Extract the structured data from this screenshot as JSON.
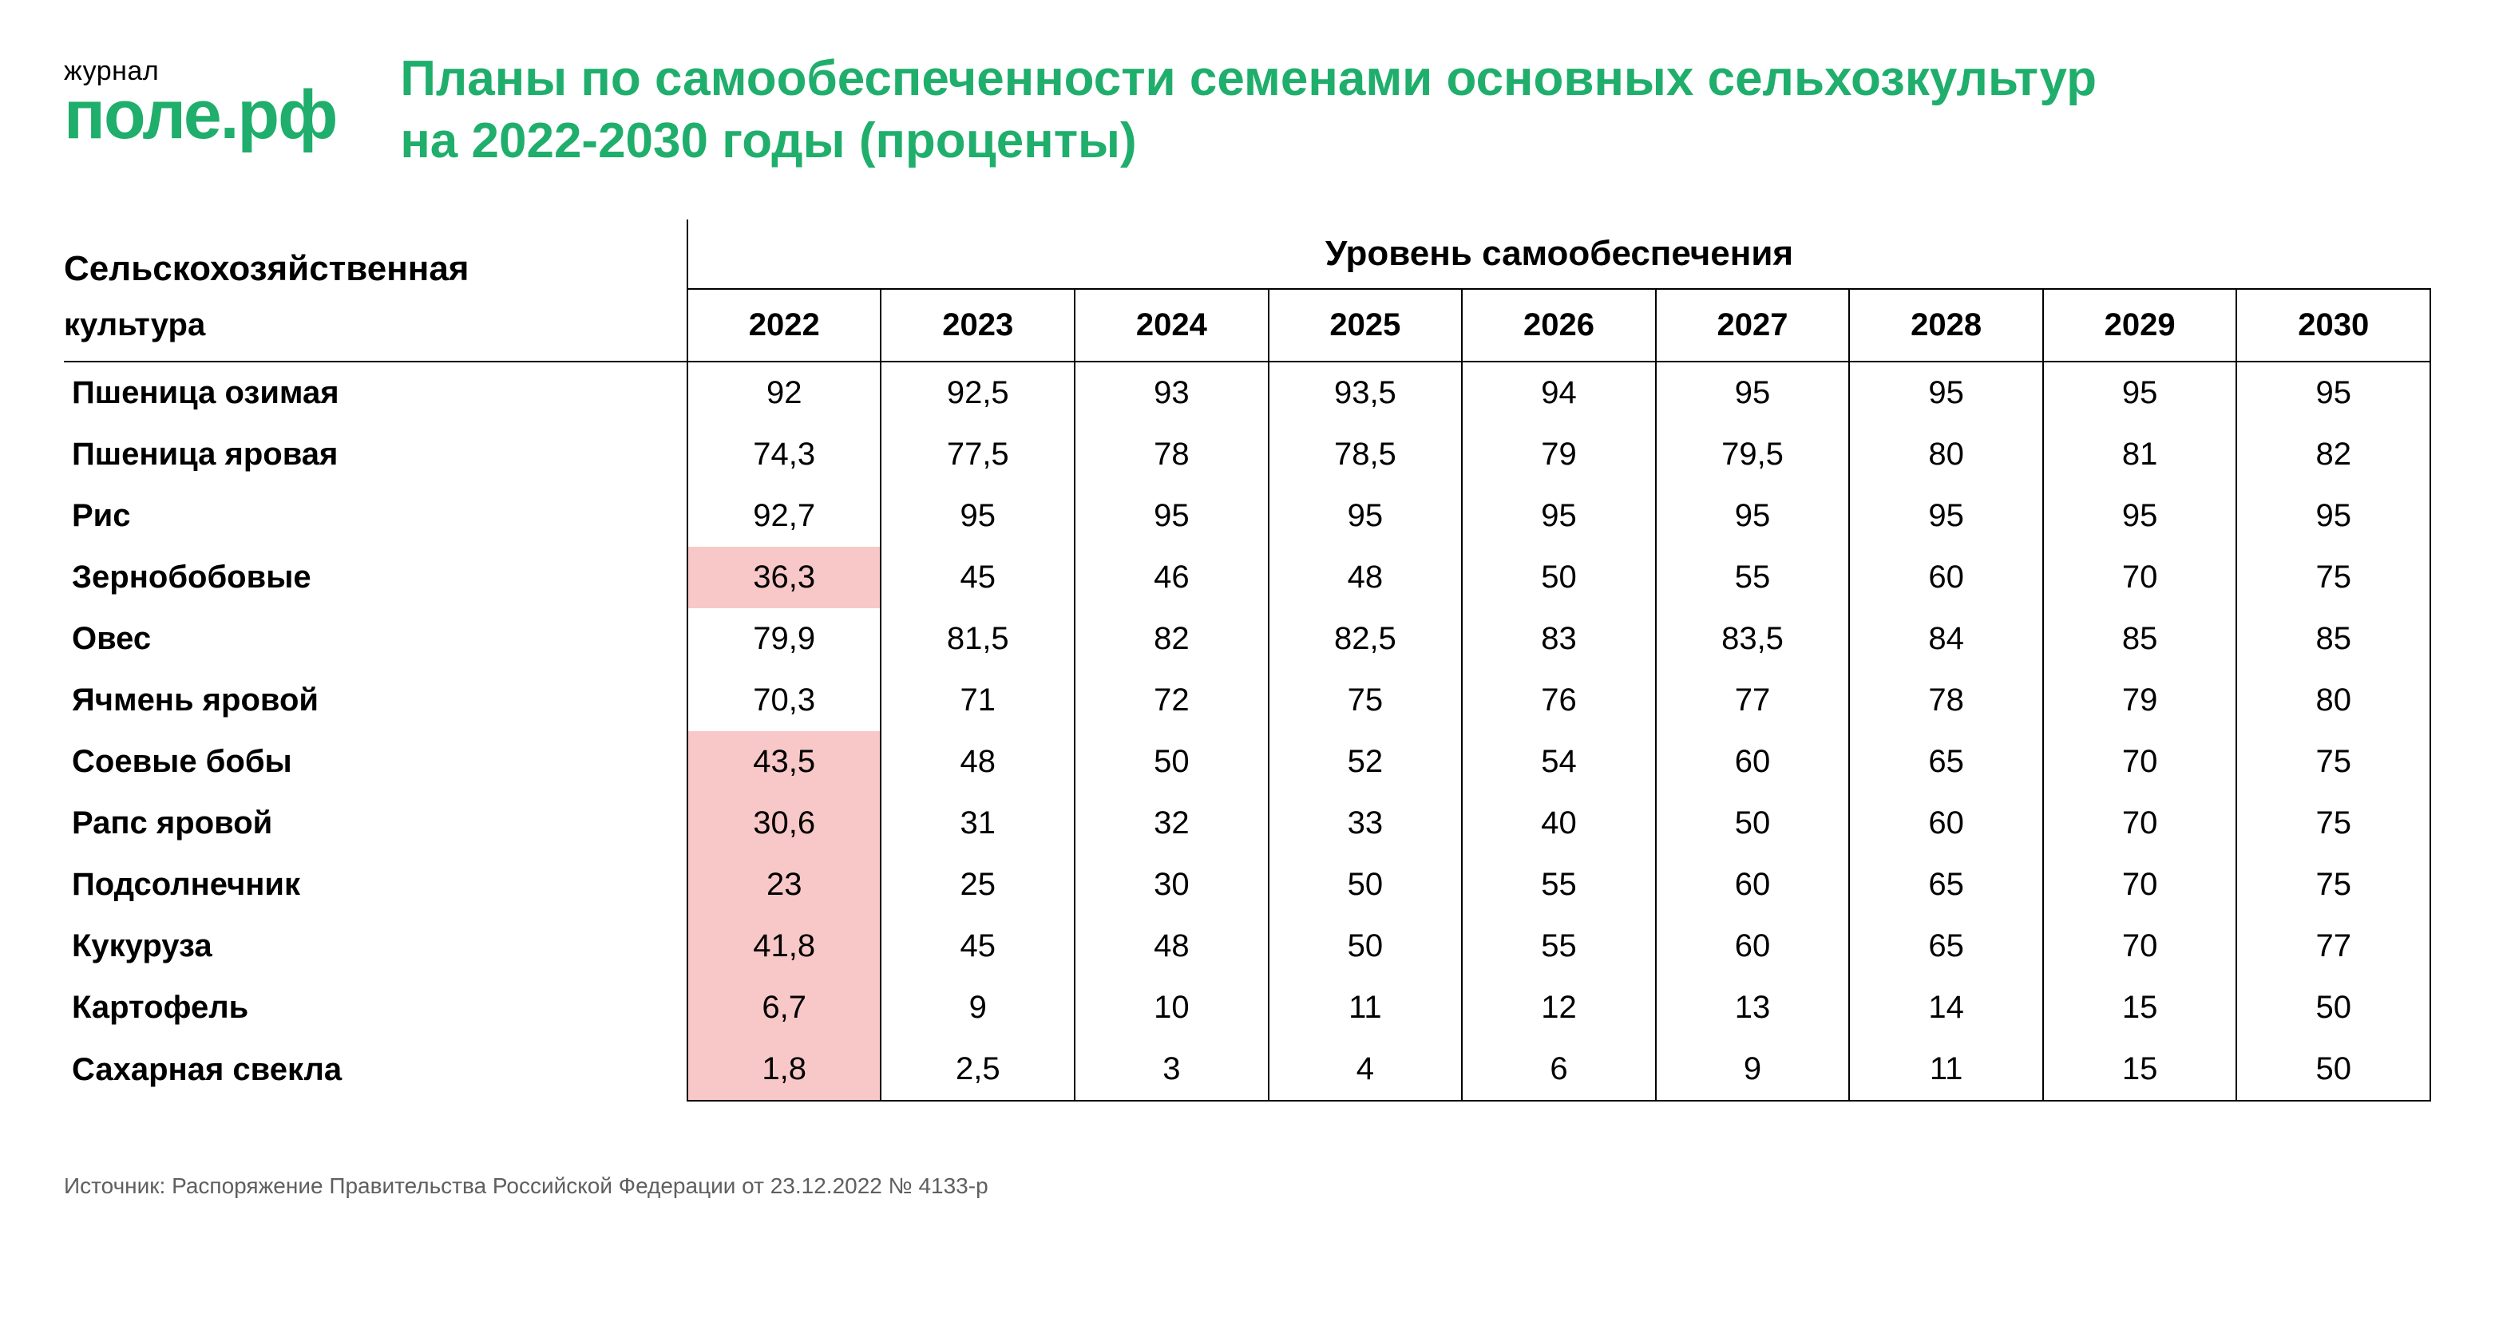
{
  "logo": {
    "top": "журнал",
    "bottom": "поле.рф",
    "color": "#1fae6b"
  },
  "title": {
    "text": "Планы по самообеспеченности семенами основных сельхозкультур на 2022-2030 годы (проценты)",
    "color": "#1fae6b"
  },
  "table": {
    "row_header_label": "Сельскохозяйственная культура",
    "group_header": "Уровень самообеспечения",
    "columns": [
      "2022",
      "2023",
      "2024",
      "2025",
      "2026",
      "2027",
      "2028",
      "2029",
      "2030"
    ],
    "highlight_color": "#f8c8c8",
    "border_color": "#000000",
    "font_size_header": 44,
    "font_size_cell": 40,
    "rows": [
      {
        "label": "Пшеница озимая",
        "values": [
          "92",
          "92,5",
          "93",
          "93,5",
          "94",
          "95",
          "95",
          "95",
          "95"
        ],
        "highlight": [
          false,
          false,
          false,
          false,
          false,
          false,
          false,
          false,
          false
        ]
      },
      {
        "label": "Пшеница яровая",
        "values": [
          "74,3",
          "77,5",
          "78",
          "78,5",
          "79",
          "79,5",
          "80",
          "81",
          "82"
        ],
        "highlight": [
          false,
          false,
          false,
          false,
          false,
          false,
          false,
          false,
          false
        ]
      },
      {
        "label": "Рис",
        "values": [
          "92,7",
          "95",
          "95",
          "95",
          "95",
          "95",
          "95",
          "95",
          "95"
        ],
        "highlight": [
          false,
          false,
          false,
          false,
          false,
          false,
          false,
          false,
          false
        ]
      },
      {
        "label": "Зернобобовые",
        "values": [
          "36,3",
          "45",
          "46",
          "48",
          "50",
          "55",
          "60",
          "70",
          "75"
        ],
        "highlight": [
          true,
          false,
          false,
          false,
          false,
          false,
          false,
          false,
          false
        ]
      },
      {
        "label": "Овес",
        "values": [
          "79,9",
          "81,5",
          "82",
          "82,5",
          "83",
          "83,5",
          "84",
          "85",
          "85"
        ],
        "highlight": [
          false,
          false,
          false,
          false,
          false,
          false,
          false,
          false,
          false
        ]
      },
      {
        "label": "Ячмень яровой",
        "values": [
          "70,3",
          "71",
          "72",
          "75",
          "76",
          "77",
          "78",
          "79",
          "80"
        ],
        "highlight": [
          false,
          false,
          false,
          false,
          false,
          false,
          false,
          false,
          false
        ]
      },
      {
        "label": "Соевые бобы",
        "values": [
          "43,5",
          "48",
          "50",
          "52",
          "54",
          "60",
          "65",
          "70",
          "75"
        ],
        "highlight": [
          true,
          false,
          false,
          false,
          false,
          false,
          false,
          false,
          false
        ]
      },
      {
        "label": "Рапс яровой",
        "values": [
          "30,6",
          "31",
          "32",
          "33",
          "40",
          "50",
          "60",
          "70",
          "75"
        ],
        "highlight": [
          true,
          false,
          false,
          false,
          false,
          false,
          false,
          false,
          false
        ]
      },
      {
        "label": "Подсолнечник",
        "values": [
          "23",
          "25",
          "30",
          "50",
          "55",
          "60",
          "65",
          "70",
          "75"
        ],
        "highlight": [
          true,
          false,
          false,
          false,
          false,
          false,
          false,
          false,
          false
        ]
      },
      {
        "label": "Кукуруза",
        "values": [
          "41,8",
          "45",
          "48",
          "50",
          "55",
          "60",
          "65",
          "70",
          "77"
        ],
        "highlight": [
          true,
          false,
          false,
          false,
          false,
          false,
          false,
          false,
          false
        ]
      },
      {
        "label": "Картофель",
        "values": [
          "6,7",
          "9",
          "10",
          "11",
          "12",
          "13",
          "14",
          "15",
          "50"
        ],
        "highlight": [
          true,
          false,
          false,
          false,
          false,
          false,
          false,
          false,
          false
        ]
      },
      {
        "label": "Сахарная свекла",
        "values": [
          "1,8",
          "2,5",
          "3",
          "4",
          "6",
          "9",
          "11",
          "15",
          "50"
        ],
        "highlight": [
          true,
          false,
          false,
          false,
          false,
          false,
          false,
          false,
          false
        ]
      }
    ]
  },
  "source": "Источник: Распоряжение Правительства Российской Федерации от 23.12.2022 № 4133-р"
}
